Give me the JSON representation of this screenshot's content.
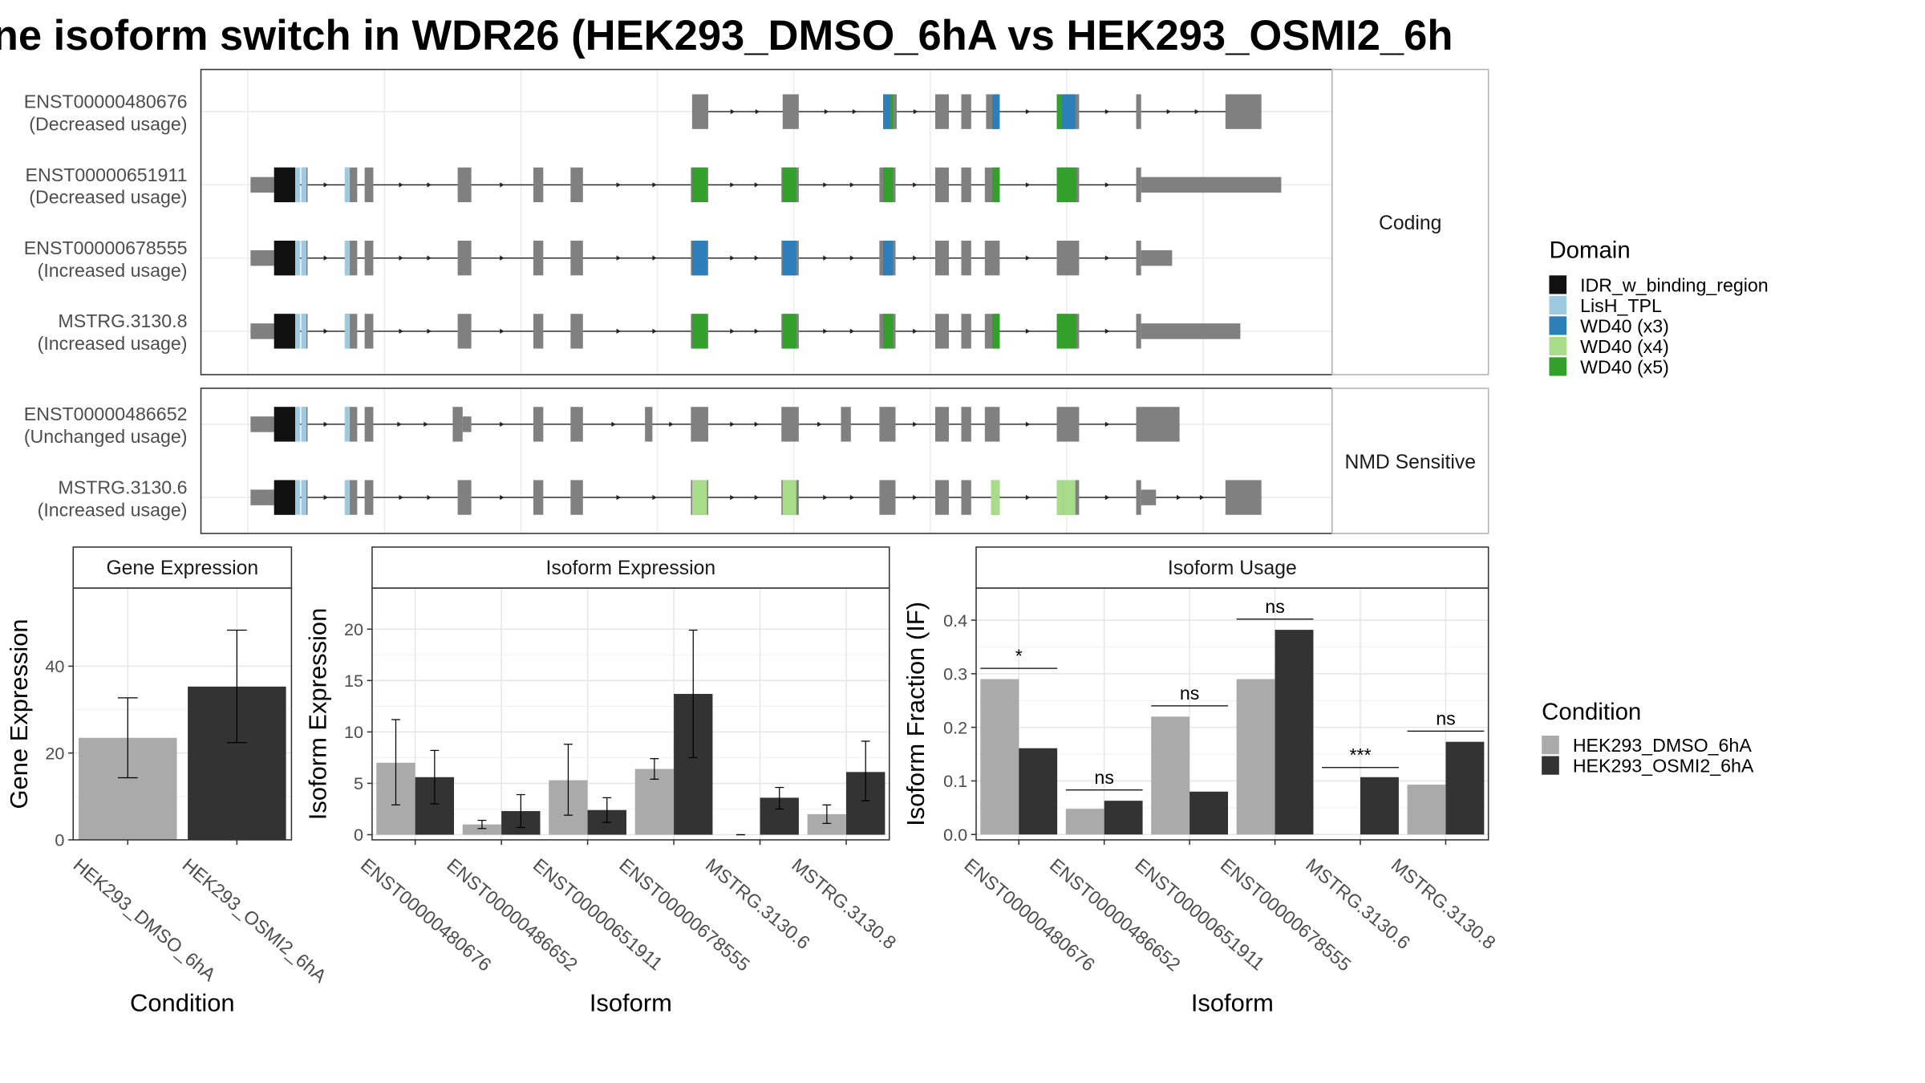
{
  "title": "ne isoform switch in WDR26 (HEK293_DMSO_6hA vs HEK293_OSMI2_6h",
  "colors": {
    "exon": "#808080",
    "IDR_w_binding_region": "#111111",
    "LisH_TPL": "#9ecae1",
    "WD40 (x3)": "#2c7fb8",
    "WD40 (x4)": "#a6dc8a",
    "WD40 (x5)": "#33a02c",
    "cond1": "#aaaaaa",
    "cond2": "#333333"
  },
  "transcript_panels": [
    {
      "strip": "Coding",
      "transcripts": [
        {
          "id": "ENST00000480676",
          "usage": "(Decreased usage)"
        },
        {
          "id": "ENST00000651911",
          "usage": "(Decreased usage)"
        },
        {
          "id": "ENST00000678555",
          "usage": "(Increased usage)"
        },
        {
          "id": "MSTRG.3130.8",
          "usage": "(Increased usage)"
        }
      ]
    },
    {
      "strip": "NMD Sensitive",
      "transcripts": [
        {
          "id": "ENST00000486652",
          "usage": "(Unchanged usage)"
        },
        {
          "id": "MSTRG.3130.6",
          "usage": "(Increased usage)"
        }
      ]
    }
  ],
  "domain_legend": {
    "title": "Domain",
    "items": [
      "IDR_w_binding_region",
      "LisH_TPL",
      "WD40 (x3)",
      "WD40 (x4)",
      "WD40 (x5)"
    ]
  },
  "condition_legend": {
    "title": "Condition",
    "items": [
      "HEK293_DMSO_6hA",
      "HEK293_OSMI2_6hA"
    ]
  },
  "chart_data": [
    {
      "type": "bar",
      "title": "Gene Expression",
      "xlabel": "Condition",
      "ylabel": "Gene Expression",
      "categories": [
        "HEK293_DMSO_6hA",
        "HEK293_OSMI2_6hA"
      ],
      "values": [
        23.5,
        35.3
      ],
      "errors": [
        [
          14.3,
          32.7
        ],
        [
          22.4,
          48.3
        ]
      ],
      "ylim": [
        0,
        58
      ],
      "yticks": [
        0,
        20,
        40
      ],
      "grid": true
    },
    {
      "type": "bar",
      "title": "Isoform Expression",
      "xlabel": "Isoform",
      "ylabel": "Isoform Expression",
      "categories": [
        "ENST00000480676",
        "ENST00000486652",
        "ENST00000651911",
        "ENST00000678555",
        "MSTRG.3130.6",
        "MSTRG.3130.8"
      ],
      "series": [
        {
          "name": "HEK293_DMSO_6hA",
          "values": [
            7.0,
            1.0,
            5.3,
            6.4,
            0.0,
            2.0
          ],
          "errors": [
            [
              2.9,
              11.2
            ],
            [
              0.6,
              1.4
            ],
            [
              1.9,
              8.8
            ],
            [
              5.4,
              7.4
            ],
            [
              0.0,
              0.0
            ],
            [
              1.1,
              2.9
            ]
          ]
        },
        {
          "name": "HEK293_OSMI2_6hA",
          "values": [
            5.6,
            2.3,
            2.4,
            13.7,
            3.6,
            6.1
          ],
          "errors": [
            [
              3.0,
              8.2
            ],
            [
              0.7,
              3.9
            ],
            [
              1.2,
              3.6
            ],
            [
              7.5,
              19.9
            ],
            [
              2.5,
              4.6
            ],
            [
              3.3,
              9.1
            ]
          ]
        }
      ],
      "ylim": [
        -0.5,
        24
      ],
      "yticks": [
        0,
        5,
        10,
        15,
        20
      ],
      "grid": true
    },
    {
      "type": "bar",
      "title": "Isoform Usage",
      "xlabel": "Isoform",
      "ylabel": "Isoform Fraction (IF)",
      "categories": [
        "ENST00000480676",
        "ENST00000486652",
        "ENST00000651911",
        "ENST00000678555",
        "MSTRG.3130.6",
        "MSTRG.3130.8"
      ],
      "series": [
        {
          "name": "HEK293_DMSO_6hA",
          "values": [
            0.29,
            0.048,
            0.22,
            0.29,
            0.0,
            0.093
          ]
        },
        {
          "name": "HEK293_OSMI2_6hA",
          "values": [
            0.161,
            0.063,
            0.08,
            0.382,
            0.107,
            0.173
          ]
        }
      ],
      "significance": [
        {
          "label": "*",
          "y": 0.31
        },
        {
          "label": "ns",
          "y": 0.083
        },
        {
          "label": "ns",
          "y": 0.24
        },
        {
          "label": "ns",
          "y": 0.402
        },
        {
          "label": "***",
          "y": 0.125
        },
        {
          "label": "ns",
          "y": 0.193
        }
      ],
      "ylim": [
        -0.01,
        0.46
      ],
      "yticks": [
        0.0,
        0.1,
        0.2,
        0.3,
        0.4
      ],
      "ytick_labels": [
        "0.0",
        "0.1",
        "0.2",
        "0.3",
        "0.4"
      ],
      "grid": true
    }
  ]
}
